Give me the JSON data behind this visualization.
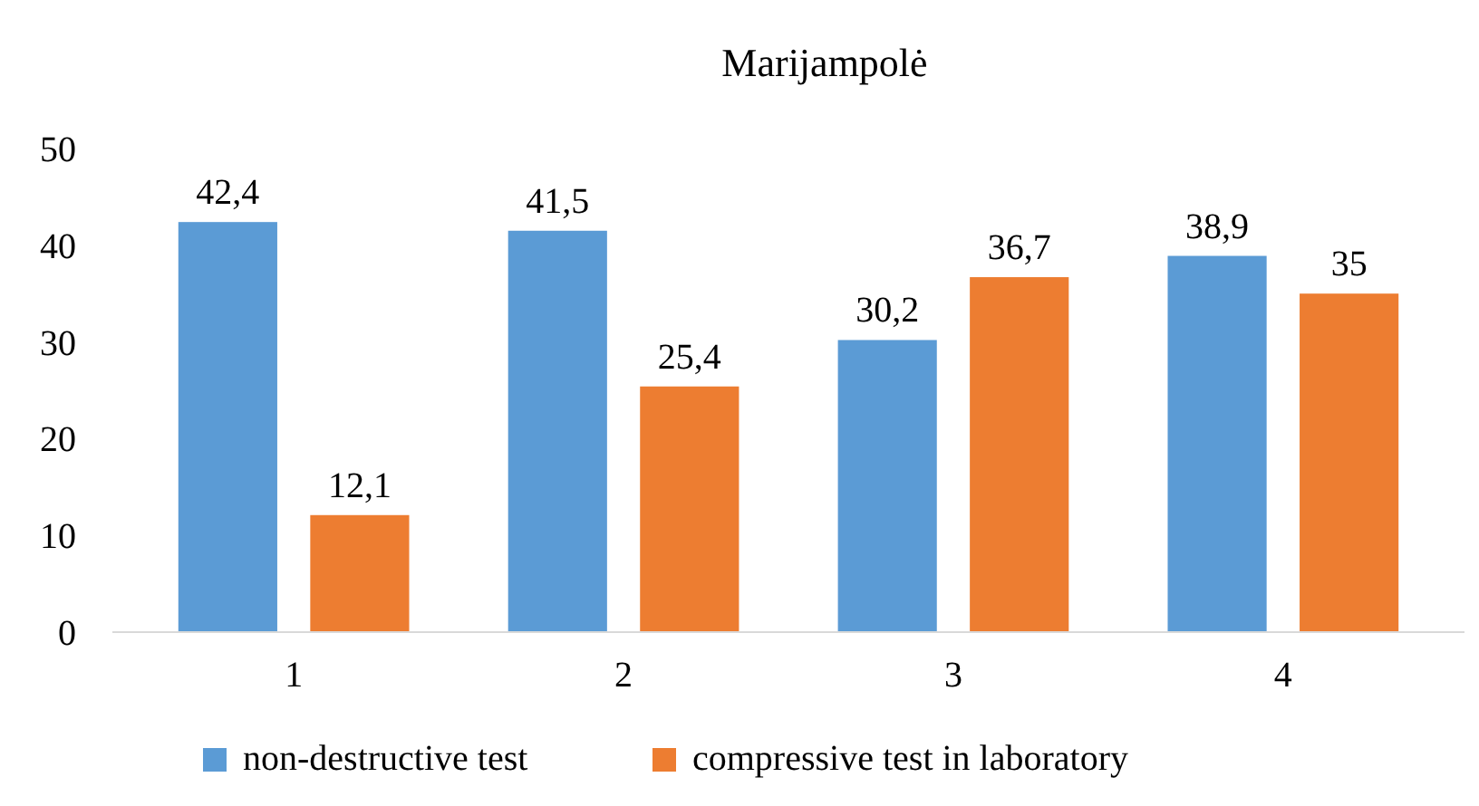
{
  "chart_data": {
    "type": "bar",
    "title": "Marijampolė",
    "categories": [
      "1",
      "2",
      "3",
      "4"
    ],
    "series": [
      {
        "name": "non-destructive test",
        "color": "#5b9bd5",
        "values": [
          42.4,
          41.5,
          30.2,
          38.9
        ],
        "value_labels": [
          "42,4",
          "41,5",
          "30,2",
          "38,9"
        ]
      },
      {
        "name": "compressive test in laboratory",
        "color": "#ed7d31",
        "values": [
          12.1,
          25.4,
          36.7,
          35
        ],
        "value_labels": [
          "12,1",
          "25,4",
          "36,7",
          "35"
        ]
      }
    ],
    "ylim": [
      0,
      50
    ],
    "yticks": [
      0,
      10,
      20,
      30,
      40,
      50
    ],
    "grid": false,
    "legend": "bottom"
  }
}
